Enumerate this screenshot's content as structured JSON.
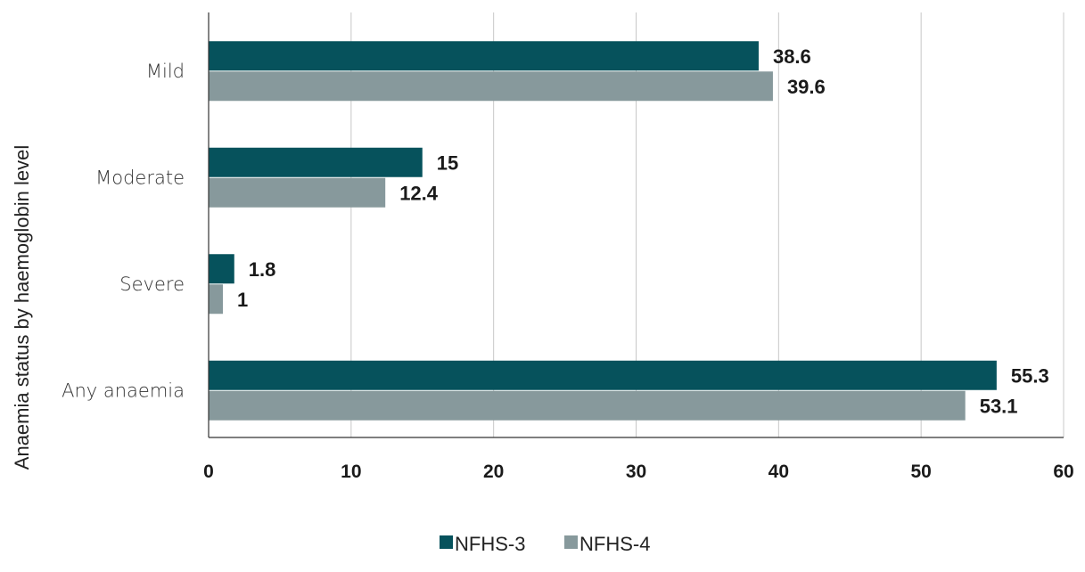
{
  "chart_data": {
    "type": "bar",
    "orientation": "horizontal",
    "categories": [
      "Mild",
      "Moderate",
      "Severe",
      "Any anaemia"
    ],
    "series": [
      {
        "name": "NFHS-3",
        "color": "#06525c",
        "values": [
          38.6,
          15,
          1.8,
          55.3
        ]
      },
      {
        "name": "NFHS-4",
        "color": "#87999c",
        "values": [
          39.6,
          12.4,
          1,
          53.1
        ]
      }
    ],
    "xlim": [
      0,
      60
    ],
    "xticks": [
      0,
      10,
      20,
      30,
      40,
      50,
      60
    ],
    "ylabel": "Anaemia status by haemoglobin level",
    "xlabel": "",
    "grid": "vertical",
    "legend": "bottom"
  }
}
